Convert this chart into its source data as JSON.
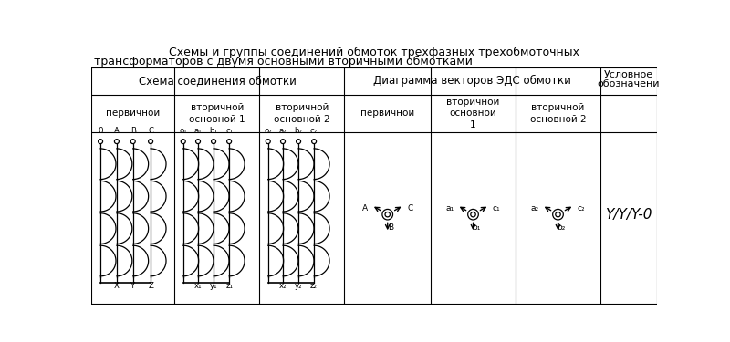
{
  "title_line1": "Схемы и группы соединений обмоток трехфазных трехобмоточных",
  "title_line2": "трансформаторов с двумя основными вторичными обмотками",
  "header_schema": "Схема соединения обмотки",
  "header_diag": "Диаграмма векторов ЭДС обмотки",
  "header_cond_1": "Условное",
  "header_cond_2": "обозначени",
  "sub_headers": [
    "первичной",
    "вторичной\nосновной 1",
    "вторичной\nосновной 2",
    "первичной",
    "вторичной\nосновной\n1",
    "вторичной\nосновной 2"
  ],
  "w1_top": [
    "0",
    "A",
    "B",
    "C"
  ],
  "w1_bot": [
    "X",
    "Y",
    "Z"
  ],
  "w2_top": [
    "o₁",
    "a₁",
    "b₁",
    "c₁"
  ],
  "w2_bot": [
    "x₁",
    "y₁",
    "z₁"
  ],
  "w3_top": [
    "o₂",
    "a₂",
    "b₂",
    "c₂"
  ],
  "w3_bot": [
    "x₂",
    "y₂",
    "z₂"
  ],
  "v1_labels": [
    "B",
    "A",
    "C"
  ],
  "v2_labels": [
    "b₁",
    "a₁",
    "c₁"
  ],
  "v3_labels": [
    "b₂",
    "a₂",
    "c₂"
  ],
  "cond_label": "Y/Y/Y-0",
  "cols": [
    0,
    118,
    238,
    358,
    480,
    600,
    720,
    800
  ],
  "rows": [
    38,
    76,
    130,
    374
  ],
  "bg": "#ffffff",
  "lc": "#000000",
  "fs_title": 9,
  "fs_hdr": 8.5,
  "fs_sub": 7.5,
  "fs_lbl": 6.2,
  "fs_cond": 11
}
